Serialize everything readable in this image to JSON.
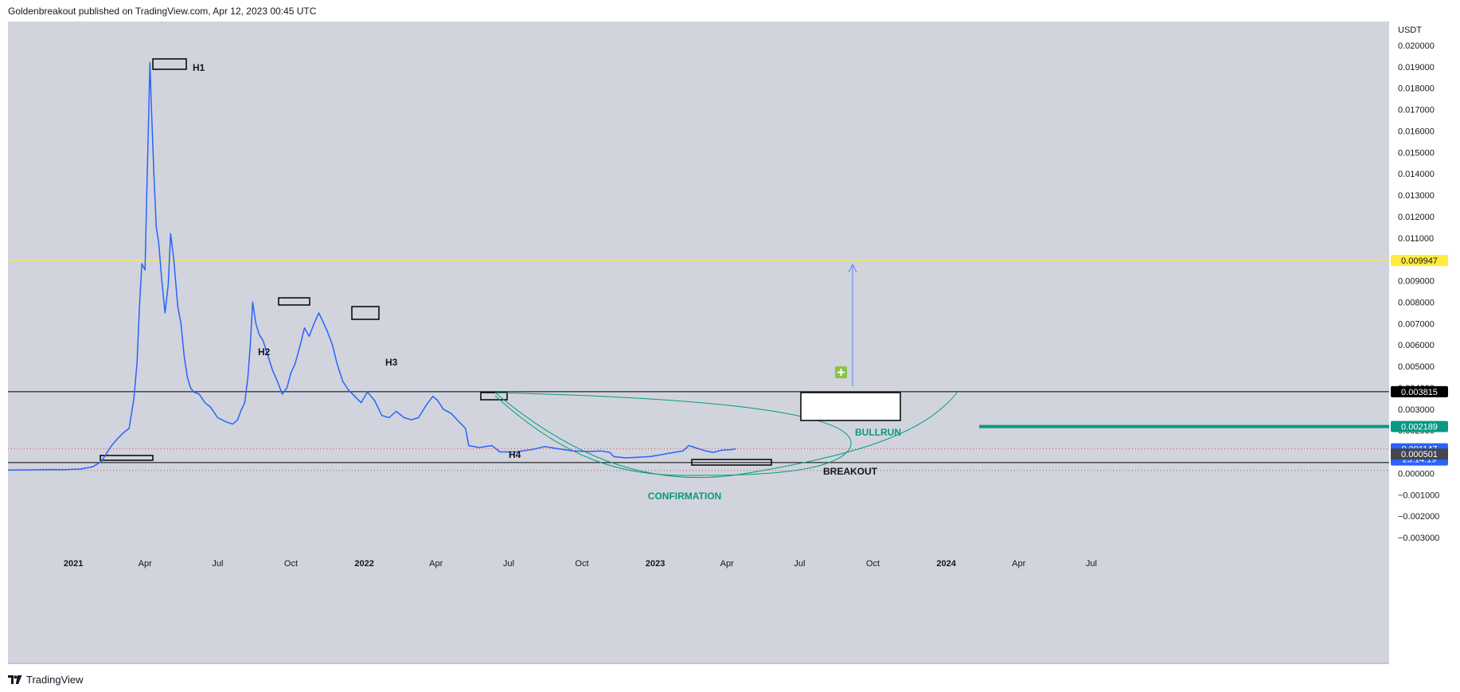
{
  "header": {
    "published_text": "Goldenbreakout published on TradingView.com, Apr 12, 2023 00:45 UTC"
  },
  "footer": {
    "brand": "TradingView",
    "logo_icon": "tradingview-logo-icon"
  },
  "colors": {
    "background": "#d1d4dc",
    "price_line": "#2962ff",
    "annotation_green": "#089981",
    "level_yellow": "#ffeb3b",
    "current_price_blue": "#2962ff"
  },
  "chart_data": {
    "type": "line",
    "currency": "USDT",
    "ylim": [
      -0.0035,
      0.0205
    ],
    "xlim": [
      "2020-10-01",
      "2024-10-01"
    ],
    "grid": false,
    "y_ticks": [
      "0.020000",
      "0.019000",
      "0.018000",
      "0.017000",
      "0.016000",
      "0.015000",
      "0.014000",
      "0.013000",
      "0.012000",
      "0.011000",
      "0.010000",
      "0.009000",
      "0.008000",
      "0.007000",
      "0.006000",
      "0.005000",
      "0.004000",
      "0.003000",
      "0.002000",
      "0.001000",
      "0.000000",
      "−0.001000",
      "−0.002000",
      "−0.003000"
    ],
    "x_ticks": [
      {
        "label": "Oct",
        "date": "2020-10-01"
      },
      {
        "label": "2021",
        "date": "2021-01-01"
      },
      {
        "label": "Apr",
        "date": "2021-04-01"
      },
      {
        "label": "Jul",
        "date": "2021-07-01"
      },
      {
        "label": "Oct",
        "date": "2021-10-01"
      },
      {
        "label": "2022",
        "date": "2022-01-01"
      },
      {
        "label": "Apr",
        "date": "2022-04-01"
      },
      {
        "label": "Jul",
        "date": "2022-07-01"
      },
      {
        "label": "Oct",
        "date": "2022-10-01"
      },
      {
        "label": "2023",
        "date": "2023-01-01"
      },
      {
        "label": "Apr",
        "date": "2023-04-01"
      },
      {
        "label": "Jul",
        "date": "2023-07-01"
      },
      {
        "label": "Oct",
        "date": "2023-10-01"
      },
      {
        "label": "2024",
        "date": "2024-01-01"
      },
      {
        "label": "Apr",
        "date": "2024-04-01"
      },
      {
        "label": "Jul",
        "date": "2024-07-01"
      }
    ],
    "series": [
      {
        "values": [
          [
            "2020-10-01",
            0.00015
          ],
          [
            "2020-11-01",
            0.00016
          ],
          [
            "2020-12-01",
            0.00018
          ],
          [
            "2020-12-20",
            0.00017
          ],
          [
            "2021-01-10",
            0.0002
          ],
          [
            "2021-01-25",
            0.0003
          ],
          [
            "2021-02-05",
            0.00055
          ],
          [
            "2021-02-12",
            0.00095
          ],
          [
            "2021-02-18",
            0.0013
          ],
          [
            "2021-02-25",
            0.0016
          ],
          [
            "2021-03-05",
            0.0019
          ],
          [
            "2021-03-12",
            0.0021
          ],
          [
            "2021-03-18",
            0.0035
          ],
          [
            "2021-03-22",
            0.0052
          ],
          [
            "2021-03-25",
            0.0078
          ],
          [
            "2021-03-28",
            0.0098
          ],
          [
            "2021-04-01",
            0.0095
          ],
          [
            "2021-04-03",
            0.013
          ],
          [
            "2021-04-05",
            0.016
          ],
          [
            "2021-04-07",
            0.0192
          ],
          [
            "2021-04-09",
            0.017
          ],
          [
            "2021-04-12",
            0.014
          ],
          [
            "2021-04-15",
            0.0115
          ],
          [
            "2021-04-18",
            0.0108
          ],
          [
            "2021-04-22",
            0.009
          ],
          [
            "2021-04-26",
            0.0075
          ],
          [
            "2021-04-30",
            0.0088
          ],
          [
            "2021-05-03",
            0.0112
          ],
          [
            "2021-05-07",
            0.01
          ],
          [
            "2021-05-12",
            0.0078
          ],
          [
            "2021-05-16",
            0.007
          ],
          [
            "2021-05-20",
            0.0055
          ],
          [
            "2021-05-24",
            0.0045
          ],
          [
            "2021-05-28",
            0.004
          ],
          [
            "2021-06-01",
            0.0038
          ],
          [
            "2021-06-08",
            0.0037
          ],
          [
            "2021-06-15",
            0.0033
          ],
          [
            "2021-06-22",
            0.0031
          ],
          [
            "2021-07-01",
            0.0026
          ],
          [
            "2021-07-12",
            0.0024
          ],
          [
            "2021-07-20",
            0.0023
          ],
          [
            "2021-07-26",
            0.0025
          ],
          [
            "2021-07-30",
            0.0029
          ],
          [
            "2021-08-04",
            0.0033
          ],
          [
            "2021-08-08",
            0.0045
          ],
          [
            "2021-08-11",
            0.006
          ],
          [
            "2021-08-14",
            0.008
          ],
          [
            "2021-08-18",
            0.007
          ],
          [
            "2021-08-22",
            0.0065
          ],
          [
            "2021-08-27",
            0.0062
          ],
          [
            "2021-09-02",
            0.0055
          ],
          [
            "2021-09-08",
            0.0048
          ],
          [
            "2021-09-14",
            0.0043
          ],
          [
            "2021-09-20",
            0.0037
          ],
          [
            "2021-09-26",
            0.004
          ],
          [
            "2021-10-01",
            0.0047
          ],
          [
            "2021-10-06",
            0.0051
          ],
          [
            "2021-10-12",
            0.0059
          ],
          [
            "2021-10-18",
            0.0068
          ],
          [
            "2021-10-24",
            0.0064
          ],
          [
            "2021-10-30",
            0.007
          ],
          [
            "2021-11-05",
            0.0075
          ],
          [
            "2021-11-10",
            0.0071
          ],
          [
            "2021-11-16",
            0.0066
          ],
          [
            "2021-11-22",
            0.006
          ],
          [
            "2021-11-28",
            0.0051
          ],
          [
            "2021-12-05",
            0.0043
          ],
          [
            "2021-12-12",
            0.0039
          ],
          [
            "2021-12-20",
            0.0036
          ],
          [
            "2021-12-28",
            0.0033
          ],
          [
            "2022-01-05",
            0.0038
          ],
          [
            "2022-01-14",
            0.0034
          ],
          [
            "2022-01-23",
            0.0027
          ],
          [
            "2022-02-01",
            0.0026
          ],
          [
            "2022-02-10",
            0.0029
          ],
          [
            "2022-02-20",
            0.0026
          ],
          [
            "2022-03-01",
            0.0025
          ],
          [
            "2022-03-10",
            0.0026
          ],
          [
            "2022-03-20",
            0.0032
          ],
          [
            "2022-03-28",
            0.0036
          ],
          [
            "2022-04-03",
            0.0034
          ],
          [
            "2022-04-10",
            0.003
          ],
          [
            "2022-04-20",
            0.0028
          ],
          [
            "2022-04-30",
            0.0024
          ],
          [
            "2022-05-08",
            0.0021
          ],
          [
            "2022-05-12",
            0.0013
          ],
          [
            "2022-05-25",
            0.0012
          ],
          [
            "2022-06-10",
            0.0013
          ],
          [
            "2022-06-20",
            0.001
          ],
          [
            "2022-07-10",
            0.001
          ],
          [
            "2022-08-01",
            0.00112
          ],
          [
            "2022-08-15",
            0.00125
          ],
          [
            "2022-09-01",
            0.00115
          ],
          [
            "2022-09-20",
            0.00105
          ],
          [
            "2022-10-10",
            0.00102
          ],
          [
            "2022-10-25",
            0.00105
          ],
          [
            "2022-11-05",
            0.00098
          ],
          [
            "2022-11-10",
            0.00078
          ],
          [
            "2022-11-25",
            0.00072
          ],
          [
            "2022-12-10",
            0.00075
          ],
          [
            "2022-12-25",
            0.00078
          ],
          [
            "2023-01-05",
            0.00085
          ],
          [
            "2023-01-20",
            0.00095
          ],
          [
            "2023-02-05",
            0.00105
          ],
          [
            "2023-02-12",
            0.0013
          ],
          [
            "2023-02-20",
            0.0012
          ],
          [
            "2023-03-05",
            0.00105
          ],
          [
            "2023-03-15",
            0.00098
          ],
          [
            "2023-03-25",
            0.00108
          ],
          [
            "2023-04-05",
            0.0011
          ],
          [
            "2023-04-12",
            0.001147
          ]
        ]
      }
    ],
    "levels": [
      {
        "value": 0.009947,
        "label": "0.009947",
        "color": "#ffeb3b"
      },
      {
        "value": 0.003815,
        "label": "0.003815",
        "color": "#000000"
      },
      {
        "value": 0.000501,
        "label": "0.000501",
        "color": "#000000"
      },
      {
        "value": 0.002189,
        "label": "0.002189",
        "color": "#089981"
      }
    ],
    "current_price": {
      "value": 0.001147,
      "label": "0.001147",
      "countdown": "23:14:19"
    },
    "annotations": [
      {
        "text": "H1",
        "date": "2021-04-07",
        "value": 0.0192
      },
      {
        "text": "H2",
        "date": "2021-08-14",
        "value": 0.008
      },
      {
        "text": "H3",
        "date": "2021-11-05",
        "value": 0.0075
      },
      {
        "text": "H4",
        "date": "2022-03-28",
        "value": 0.0036
      },
      {
        "text": "CONFIRMATION"
      },
      {
        "text": "BREAKOUT"
      },
      {
        "text": "BULLRUN"
      }
    ]
  }
}
